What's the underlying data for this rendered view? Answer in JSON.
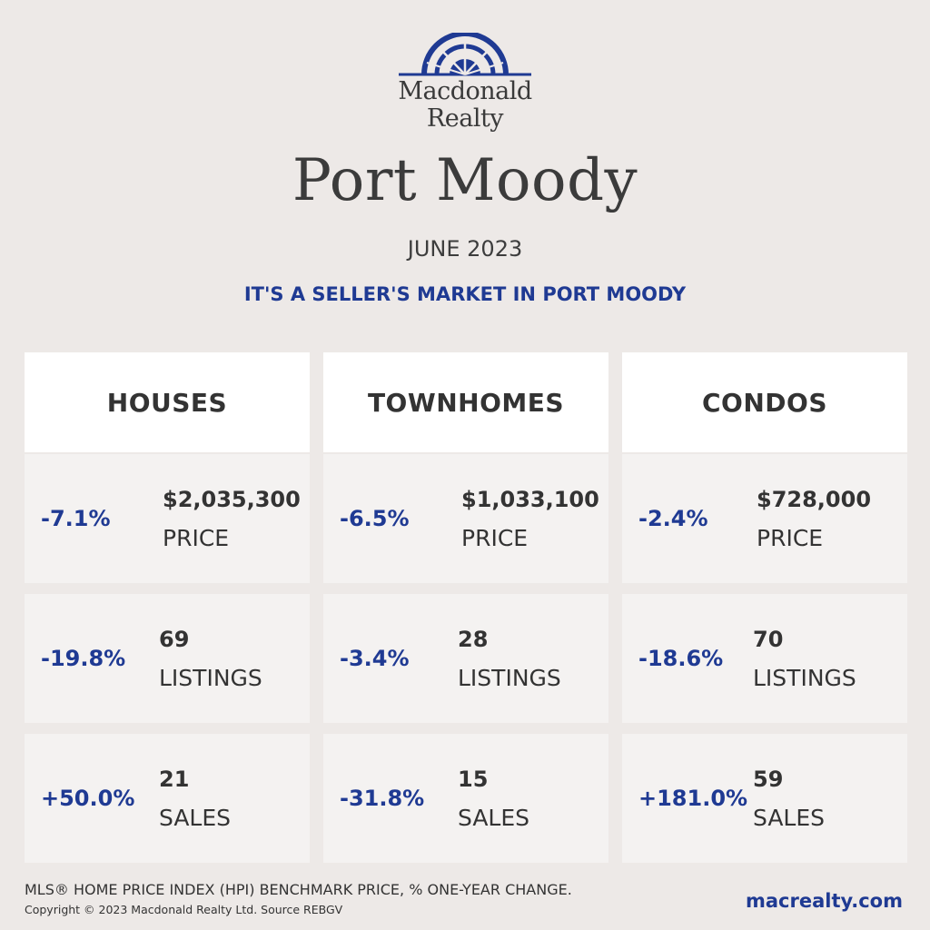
{
  "brand": {
    "line1": "Macdonald",
    "line2": "Realty",
    "logo_color": "#1f3a93"
  },
  "header": {
    "city": "Port Moody",
    "month": "JUNE 2023",
    "tagline": "IT'S A SELLER'S MARKET IN PORT MOODY"
  },
  "columns": [
    {
      "title": "HOUSES",
      "rows": [
        {
          "pct": "-7.1%",
          "value": "$2,035,300",
          "label": "PRICE"
        },
        {
          "pct": "-19.8%",
          "value": "69",
          "label": "LISTINGS"
        },
        {
          "pct": "+50.0%",
          "value": "21",
          "label": "SALES"
        }
      ]
    },
    {
      "title": "TOWNHOMES",
      "rows": [
        {
          "pct": "-6.5%",
          "value": "$1,033,100",
          "label": "PRICE"
        },
        {
          "pct": "-3.4%",
          "value": "28",
          "label": "LISTINGS"
        },
        {
          "pct": "-31.8%",
          "value": "15",
          "label": "SALES"
        }
      ]
    },
    {
      "title": "CONDOS",
      "rows": [
        {
          "pct": "-2.4%",
          "value": "$728,000",
          "label": "PRICE"
        },
        {
          "pct": "-18.6%",
          "value": "70",
          "label": "LISTINGS"
        },
        {
          "pct": "+181.0%",
          "value": "59",
          "label": "SALES"
        }
      ]
    }
  ],
  "footer": {
    "note": "MLS® HOME PRICE INDEX (HPI) BENCHMARK PRICE, % ONE-YEAR CHANGE.",
    "copyright": "Copyright © 2023 Macdonald Realty Ltd. Source REBGV",
    "website": "macrealty.com"
  },
  "colors": {
    "background": "#ede9e7",
    "accent": "#1f3a93",
    "card": "#f4f2f1",
    "header_card": "#ffffff"
  }
}
